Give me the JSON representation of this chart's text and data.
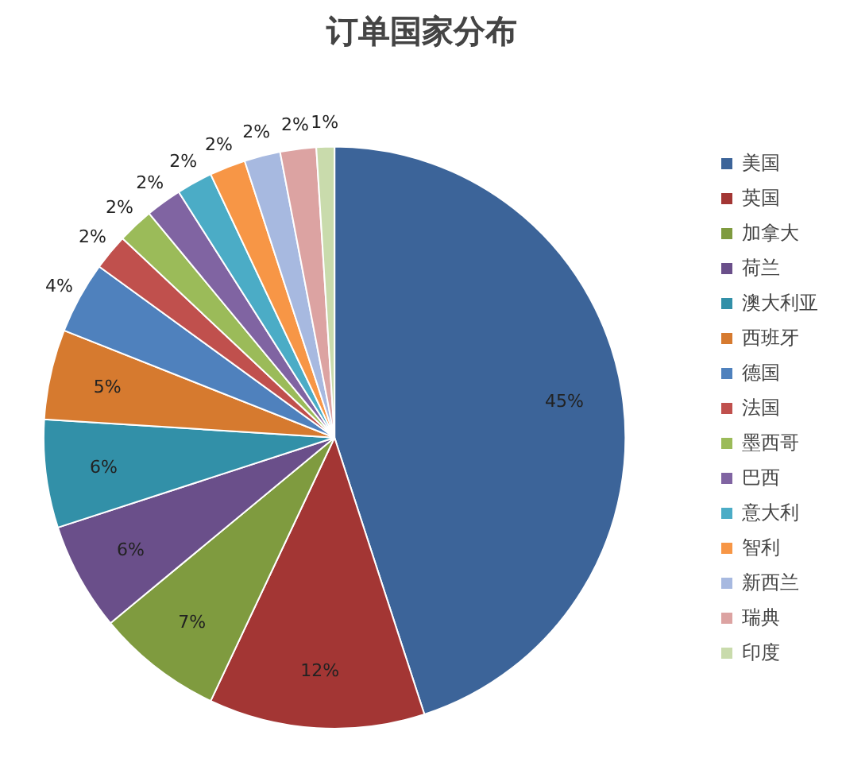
{
  "chart_data": {
    "type": "pie",
    "title": "订单国家分布",
    "categories": [
      "美国",
      "英国",
      "加拿大",
      "荷兰",
      "澳大利亚",
      "西班牙",
      "德国",
      "法国",
      "墨西哥",
      "巴西",
      "意大利",
      "智利",
      "新西兰",
      "瑞典",
      "印度"
    ],
    "values": [
      45,
      12,
      7,
      6,
      6,
      5,
      4,
      2,
      2,
      2,
      2,
      2,
      2,
      2,
      1
    ],
    "colors": [
      "#3c6499",
      "#a33634",
      "#7f9b3f",
      "#6a4f8a",
      "#3290a8",
      "#d67a2f",
      "#4f81bd",
      "#c0504d",
      "#9bbb59",
      "#8064a2",
      "#4bacc6",
      "#f79646",
      "#a7b9e0",
      "#dca3a2",
      "#c9dbac"
    ],
    "value_labels": [
      "45%",
      "12%",
      "7%",
      "6%",
      "6%",
      "5%",
      "4%",
      "2%",
      "2%",
      "2%",
      "2%",
      "2%",
      "2%",
      "2%",
      "1%"
    ],
    "legend": "right"
  }
}
